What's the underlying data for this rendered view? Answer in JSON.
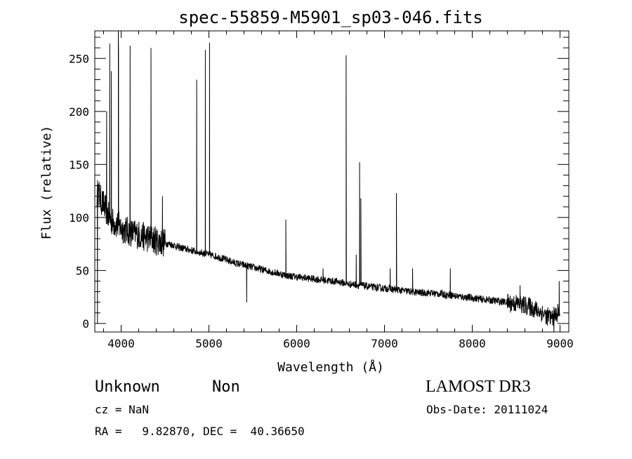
{
  "chart_data": {
    "type": "line",
    "title": "spec-55859-M5901_sp03-046.fits",
    "xlabel": "Wavelength (Å)",
    "ylabel": "Flux (relative)",
    "xlim": [
      3700,
      9100
    ],
    "ylim": [
      -8,
      276
    ],
    "x_ticks": [
      4000,
      5000,
      6000,
      7000,
      8000,
      9000
    ],
    "x_tick_labels": [
      "4000",
      "5000",
      "6000",
      "7000",
      "8000",
      "9000"
    ],
    "y_ticks": [
      0,
      50,
      100,
      150,
      200,
      250
    ],
    "y_tick_labels": [
      "0",
      "50",
      "100",
      "150",
      "200",
      "250"
    ],
    "grid": false,
    "series": [
      {
        "x": [
          3700,
          3720,
          3740,
          3760,
          3780,
          3800,
          3820,
          3840,
          3860,
          3880,
          3900,
          3920,
          3940,
          3960,
          3980,
          4000,
          4050,
          4100,
          4150,
          4200,
          4250,
          4300,
          4350,
          4400,
          4450,
          4500,
          4550,
          4600,
          4650,
          4700,
          4750,
          4800,
          4850,
          4900,
          4950,
          5000,
          5100,
          5200,
          5300,
          5400,
          5450,
          5500,
          5600,
          5700,
          5800,
          5850,
          5900,
          6000,
          6100,
          6200,
          6300,
          6400,
          6500,
          6550,
          6600,
          6650,
          6700,
          6750,
          6800,
          6900,
          7000,
          7050,
          7100,
          7150,
          7200,
          7300,
          7400,
          7500,
          7600,
          7650,
          7700,
          7750,
          7800,
          7900,
          8000,
          8100,
          8200,
          8300,
          8400,
          8450,
          8500,
          8550,
          8600,
          8650,
          8700,
          8750,
          8800,
          8850,
          8900,
          8950,
          9000
        ],
        "y": [
          110,
          120,
          125,
          118,
          115,
          112,
          108,
          105,
          100,
          98,
          96,
          95,
          94,
          93,
          92,
          90,
          88,
          86,
          85,
          84,
          82,
          81,
          80,
          78,
          77,
          76,
          75,
          74,
          72,
          71,
          70,
          69,
          68,
          67,
          66,
          65,
          63,
          60,
          57,
          55,
          54,
          53,
          51,
          49,
          47,
          46,
          45,
          44,
          43,
          42,
          41,
          40,
          39,
          38,
          37,
          37,
          36,
          36,
          35,
          34,
          33,
          33,
          32,
          32,
          31,
          30,
          29,
          29,
          28,
          28,
          27,
          27,
          26,
          25,
          24,
          23,
          22,
          21,
          20,
          19,
          19,
          18,
          17,
          16,
          14,
          12,
          10,
          7,
          5,
          8,
          12
        ],
        "markers": [
          {
            "x": 3730,
            "y": 0
          },
          {
            "x": 3835,
            "y": 200
          },
          {
            "x": 3870,
            "y": 264
          },
          {
            "x": 3889,
            "y": 238
          },
          {
            "x": 3970,
            "y": 255
          },
          {
            "x": 3968,
            "y": 276
          },
          {
            "x": 4102,
            "y": 262
          },
          {
            "x": 4340,
            "y": 260
          },
          {
            "x": 4471,
            "y": 120
          },
          {
            "x": 4861,
            "y": 230
          },
          {
            "x": 4959,
            "y": 258
          },
          {
            "x": 5007,
            "y": 265
          },
          {
            "x": 5430,
            "y": 20
          },
          {
            "x": 5876,
            "y": 98
          },
          {
            "x": 6300,
            "y": 52
          },
          {
            "x": 6563,
            "y": 253
          },
          {
            "x": 6678,
            "y": 65
          },
          {
            "x": 6717,
            "y": 152
          },
          {
            "x": 6731,
            "y": 118
          },
          {
            "x": 7065,
            "y": 52
          },
          {
            "x": 7136,
            "y": 123
          },
          {
            "x": 7320,
            "y": 52
          },
          {
            "x": 7750,
            "y": 52
          },
          {
            "x": 8545,
            "y": 36
          },
          {
            "x": 8850,
            "y": 0
          },
          {
            "x": 8930,
            "y": -8
          },
          {
            "x": 8990,
            "y": 40
          }
        ]
      }
    ]
  },
  "info": {
    "class_label": "Unknown",
    "subclass_label": "Non",
    "survey": "LAMOST DR3",
    "cz": "cz = NaN",
    "obs_date": "Obs-Date: 20111024",
    "coords": "RA =   9.82870, DEC =  40.36650"
  }
}
